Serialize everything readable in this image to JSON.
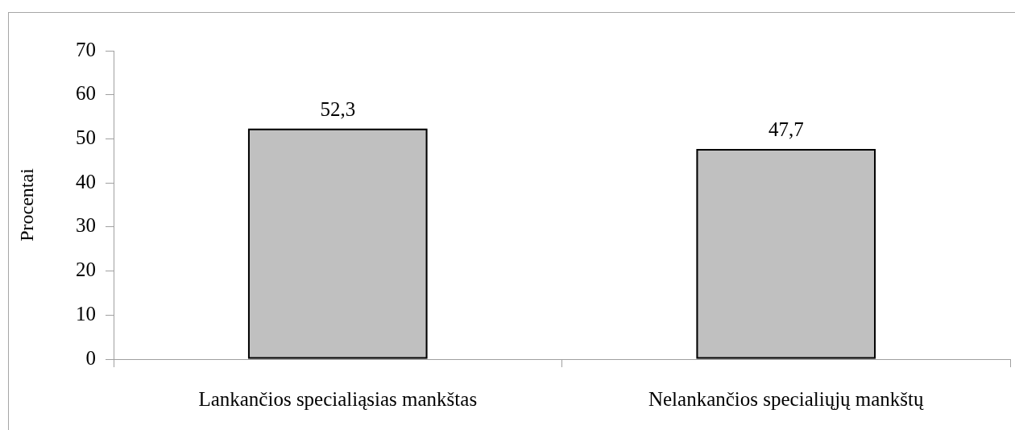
{
  "chart_data": {
    "type": "bar",
    "ylabel": "Procentai",
    "categories": [
      "Lankančios specialiąsias mankštas",
      "Nelankančios specialiųjų mankštų"
    ],
    "values": [
      52.3,
      47.7
    ],
    "color": "#c0c0c0",
    "value_labels": [
      "52,3",
      "47,7"
    ],
    "ylim": [
      0,
      70
    ],
    "yticks": [
      0,
      10,
      20,
      30,
      40,
      50,
      60,
      70
    ]
  }
}
